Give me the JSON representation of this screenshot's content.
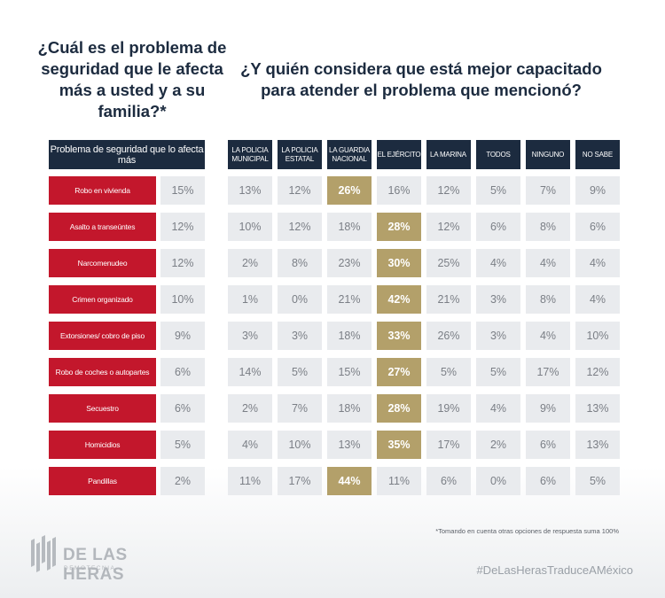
{
  "question_left": "¿Cuál es el problema de seguridad que le afecta más a usted y a su familia?*",
  "question_right": "¿Y quién considera que está mejor capacitado para atender el problema que mencionó?",
  "column_header_problem": "Problema de seguridad que lo afecta más",
  "columns": [
    "LA POLICIA MUNICIPAL",
    "LA POLICIA ESTATAL",
    "LA GUARDIA NACIONAL",
    "EL EJÉRCITO",
    "LA MARINA",
    "TODOS",
    "NINGUNO",
    "NO SABE"
  ],
  "chart_data": {
    "type": "table",
    "rows": [
      {
        "problem": "Robo en vivienda",
        "share": "15%",
        "values": [
          "13%",
          "12%",
          "26%",
          "16%",
          "12%",
          "5%",
          "7%",
          "9%"
        ],
        "highlight": 2
      },
      {
        "problem": "Asalto a transeúntes",
        "share": "12%",
        "values": [
          "10%",
          "12%",
          "18%",
          "28%",
          "12%",
          "6%",
          "8%",
          "6%"
        ],
        "highlight": 3
      },
      {
        "problem": "Narcomenudeo",
        "share": "12%",
        "values": [
          "2%",
          "8%",
          "23%",
          "30%",
          "25%",
          "4%",
          "4%",
          "4%"
        ],
        "highlight": 3
      },
      {
        "problem": "Crimen organizado",
        "share": "10%",
        "values": [
          "1%",
          "0%",
          "21%",
          "42%",
          "21%",
          "3%",
          "8%",
          "4%"
        ],
        "highlight": 3
      },
      {
        "problem": "Extorsiones/ cobro de piso",
        "share": "9%",
        "values": [
          "3%",
          "3%",
          "18%",
          "33%",
          "26%",
          "3%",
          "4%",
          "10%"
        ],
        "highlight": 3
      },
      {
        "problem": "Robo de coches o autopartes",
        "share": "6%",
        "values": [
          "14%",
          "5%",
          "15%",
          "27%",
          "5%",
          "5%",
          "17%",
          "12%"
        ],
        "highlight": 3
      },
      {
        "problem": "Secuestro",
        "share": "6%",
        "values": [
          "2%",
          "7%",
          "18%",
          "28%",
          "19%",
          "4%",
          "9%",
          "13%"
        ],
        "highlight": 3
      },
      {
        "problem": "Homicidios",
        "share": "5%",
        "values": [
          "4%",
          "10%",
          "13%",
          "35%",
          "17%",
          "2%",
          "6%",
          "13%"
        ],
        "highlight": 3
      },
      {
        "problem": "Pandillas",
        "share": "2%",
        "values": [
          "11%",
          "17%",
          "44%",
          "11%",
          "6%",
          "0%",
          "6%",
          "5%"
        ],
        "highlight": 2
      }
    ]
  },
  "footnote": "*Tomando en cuenta otras opciones de respuesta suma 100%",
  "brand_name": "DE LAS HERAS",
  "brand_sub": "DEMOTECNIA",
  "hashtag": "#DeLasHerasTraduceAMéxico",
  "colors": {
    "navy": "#1c2b3f",
    "red": "#c3172c",
    "gold": "#b3a06a",
    "cell": "#e9ebee"
  }
}
